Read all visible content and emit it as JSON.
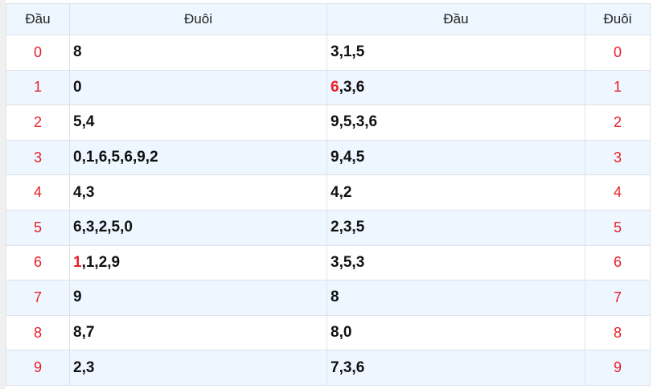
{
  "headers": [
    "Đầu",
    "Đuôi",
    "Đầu",
    "Đuôi"
  ],
  "rows": [
    {
      "dau": "0",
      "duoi": "8",
      "dau2": "3,1,5",
      "duoi2": "0"
    },
    {
      "dau": "1",
      "duoi": "0",
      "dau2_hl": "6",
      "dau2": ",3,6",
      "duoi2": "1"
    },
    {
      "dau": "2",
      "duoi": "5,4",
      "dau2": "9,5,3,6",
      "duoi2": "2"
    },
    {
      "dau": "3",
      "duoi": "0,1,6,5,6,9,2",
      "dau2": "9,4,5",
      "duoi2": "3"
    },
    {
      "dau": "4",
      "duoi": "4,3",
      "dau2": "4,2",
      "duoi2": "4"
    },
    {
      "dau": "5",
      "duoi": "6,3,2,5,0",
      "dau2": "2,3,5",
      "duoi2": "5"
    },
    {
      "dau": "6",
      "duoi_hl": "1",
      "duoi": ",1,2,9",
      "dau2": "3,5,3",
      "duoi2": "6"
    },
    {
      "dau": "7",
      "duoi": "9",
      "dau2": "8",
      "duoi2": "7"
    },
    {
      "dau": "8",
      "duoi": "8,7",
      "dau2": "8,0",
      "duoi2": "8"
    },
    {
      "dau": "9",
      "duoi": "2,3",
      "dau2": "7,3,6",
      "duoi2": "9"
    }
  ],
  "colors": {
    "highlight": "#e8202a",
    "header_bg": "#eef6ff"
  }
}
